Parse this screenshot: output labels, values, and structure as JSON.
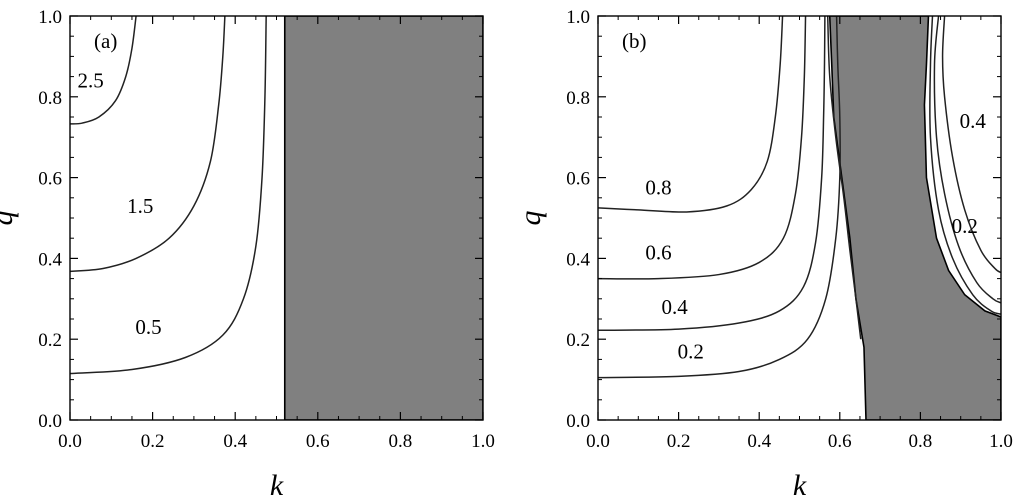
{
  "chart_data": [
    {
      "type": "contour",
      "panel_label": "(a)",
      "xlabel": "k",
      "ylabel": "q",
      "xlim": [
        0.0,
        1.0
      ],
      "ylim": [
        0.0,
        1.0
      ],
      "xticks": [
        "0.0",
        "0.2",
        "0.4",
        "0.6",
        "0.8",
        "1.0"
      ],
      "yticks": [
        "0.0",
        "0.2",
        "0.4",
        "0.6",
        "0.8",
        "1.0"
      ],
      "shaded_region": {
        "color": "#808080",
        "boundary": [
          [
            0.52,
            0.0
          ],
          [
            0.52,
            1.0
          ],
          [
            1.0,
            1.0
          ],
          [
            1.0,
            0.0
          ]
        ]
      },
      "contours": [
        {
          "level": "2.5",
          "label_at": [
            0.05,
            0.84
          ],
          "points": [
            [
              0.0,
              0.733
            ],
            [
              0.03,
              0.735
            ],
            [
              0.07,
              0.75
            ],
            [
              0.11,
              0.79
            ],
            [
              0.135,
              0.85
            ],
            [
              0.15,
              0.92
            ],
            [
              0.16,
              1.0
            ]
          ]
        },
        {
          "level": "1.5",
          "label_at": [
            0.17,
            0.53
          ],
          "points": [
            [
              0.0,
              0.368
            ],
            [
              0.08,
              0.375
            ],
            [
              0.16,
              0.4
            ],
            [
              0.24,
              0.45
            ],
            [
              0.3,
              0.53
            ],
            [
              0.34,
              0.64
            ],
            [
              0.36,
              0.78
            ],
            [
              0.37,
              0.9
            ],
            [
              0.375,
              1.0
            ]
          ]
        },
        {
          "level": "0.5",
          "label_at": [
            0.19,
            0.23
          ],
          "points": [
            [
              0.0,
              0.115
            ],
            [
              0.15,
              0.125
            ],
            [
              0.28,
              0.155
            ],
            [
              0.37,
              0.21
            ],
            [
              0.42,
              0.3
            ],
            [
              0.45,
              0.43
            ],
            [
              0.465,
              0.6
            ],
            [
              0.472,
              0.8
            ],
            [
              0.475,
              1.0
            ]
          ]
        }
      ]
    },
    {
      "type": "contour",
      "panel_label": "(b)",
      "xlabel": "k",
      "ylabel": "q",
      "xlim": [
        0.0,
        1.0
      ],
      "ylim": [
        0.0,
        1.0
      ],
      "xticks": [
        "0.0",
        "0.2",
        "0.4",
        "0.6",
        "0.8",
        "1.0"
      ],
      "yticks": [
        "0.0",
        "0.2",
        "0.4",
        "0.6",
        "0.8",
        "1.0"
      ],
      "shaded_region": {
        "color": "#808080",
        "boundary": [
          [
            0.665,
            0.0
          ],
          [
            0.66,
            0.18
          ],
          [
            0.64,
            0.3
          ],
          [
            0.625,
            0.45
          ],
          [
            0.605,
            0.6
          ],
          [
            0.585,
            0.75
          ],
          [
            0.58,
            0.88
          ],
          [
            0.575,
            1.0
          ],
          [
            0.82,
            1.0
          ],
          [
            0.815,
            0.88
          ],
          [
            0.81,
            0.78
          ],
          [
            0.815,
            0.6
          ],
          [
            0.84,
            0.45
          ],
          [
            0.87,
            0.37
          ],
          [
            0.91,
            0.31
          ],
          [
            0.96,
            0.27
          ],
          [
            1.0,
            0.255
          ],
          [
            1.0,
            0.0
          ]
        ]
      },
      "contours": [
        {
          "level": "0.8",
          "label_at": [
            0.15,
            0.575
          ],
          "points": [
            [
              0.0,
              0.525
            ],
            [
              0.1,
              0.52
            ],
            [
              0.22,
              0.515
            ],
            [
              0.32,
              0.53
            ],
            [
              0.38,
              0.57
            ],
            [
              0.42,
              0.64
            ],
            [
              0.44,
              0.75
            ],
            [
              0.452,
              0.88
            ],
            [
              0.458,
              1.0
            ]
          ]
        },
        {
          "level": "0.6",
          "label_at": [
            0.15,
            0.415
          ],
          "points": [
            [
              0.0,
              0.35
            ],
            [
              0.15,
              0.35
            ],
            [
              0.3,
              0.36
            ],
            [
              0.4,
              0.39
            ],
            [
              0.46,
              0.45
            ],
            [
              0.49,
              0.56
            ],
            [
              0.505,
              0.7
            ],
            [
              0.512,
              0.85
            ],
            [
              0.515,
              1.0
            ]
          ]
        },
        {
          "level": "0.4",
          "label_at": [
            0.19,
            0.28
          ],
          "points": [
            [
              0.0,
              0.222
            ],
            [
              0.2,
              0.225
            ],
            [
              0.35,
              0.24
            ],
            [
              0.45,
              0.27
            ],
            [
              0.51,
              0.33
            ],
            [
              0.54,
              0.44
            ],
            [
              0.555,
              0.6
            ],
            [
              0.56,
              0.76
            ],
            [
              0.562,
              0.88
            ],
            [
              0.563,
              1.0
            ]
          ]
        },
        {
          "level": "0.2",
          "label_at": [
            0.23,
            0.17
          ],
          "points": [
            [
              0.0,
              0.105
            ],
            [
              0.2,
              0.108
            ],
            [
              0.35,
              0.12
            ],
            [
              0.45,
              0.15
            ],
            [
              0.52,
              0.2
            ],
            [
              0.565,
              0.3
            ],
            [
              0.59,
              0.45
            ],
            [
              0.6,
              0.6
            ],
            [
              0.6,
              0.75
            ],
            [
              0.595,
              0.88
            ],
            [
              0.592,
              1.0
            ]
          ]
        },
        {
          "level": "",
          "points": [
            [
              0.57,
              1.0
            ],
            [
              0.575,
              0.85
            ],
            [
              0.59,
              0.7
            ],
            [
              0.61,
              0.55
            ],
            [
              0.625,
              0.42
            ],
            [
              0.64,
              0.3
            ],
            [
              0.652,
              0.2
            ]
          ]
        },
        {
          "level": "0.4",
          "label_at": [
            0.93,
            0.74
          ],
          "points": [
            [
              0.86,
              1.0
            ],
            [
              0.855,
              0.9
            ],
            [
              0.86,
              0.8
            ],
            [
              0.88,
              0.65
            ],
            [
              0.91,
              0.52
            ],
            [
              0.95,
              0.42
            ],
            [
              0.985,
              0.375
            ],
            [
              1.0,
              0.365
            ]
          ]
        },
        {
          "level": "0.2",
          "label_at": [
            0.91,
            0.48
          ],
          "points": [
            [
              0.845,
              1.0
            ],
            [
              0.835,
              0.88
            ],
            [
              0.84,
              0.7
            ],
            [
              0.86,
              0.56
            ],
            [
              0.895,
              0.43
            ],
            [
              0.94,
              0.34
            ],
            [
              0.98,
              0.3
            ],
            [
              1.0,
              0.29
            ]
          ]
        },
        {
          "level": "",
          "points": [
            [
              0.83,
              1.0
            ],
            [
              0.825,
              0.88
            ],
            [
              0.825,
              0.7
            ],
            [
              0.845,
              0.52
            ],
            [
              0.88,
              0.4
            ],
            [
              0.93,
              0.31
            ],
            [
              0.975,
              0.27
            ],
            [
              1.0,
              0.262
            ]
          ]
        }
      ]
    }
  ]
}
